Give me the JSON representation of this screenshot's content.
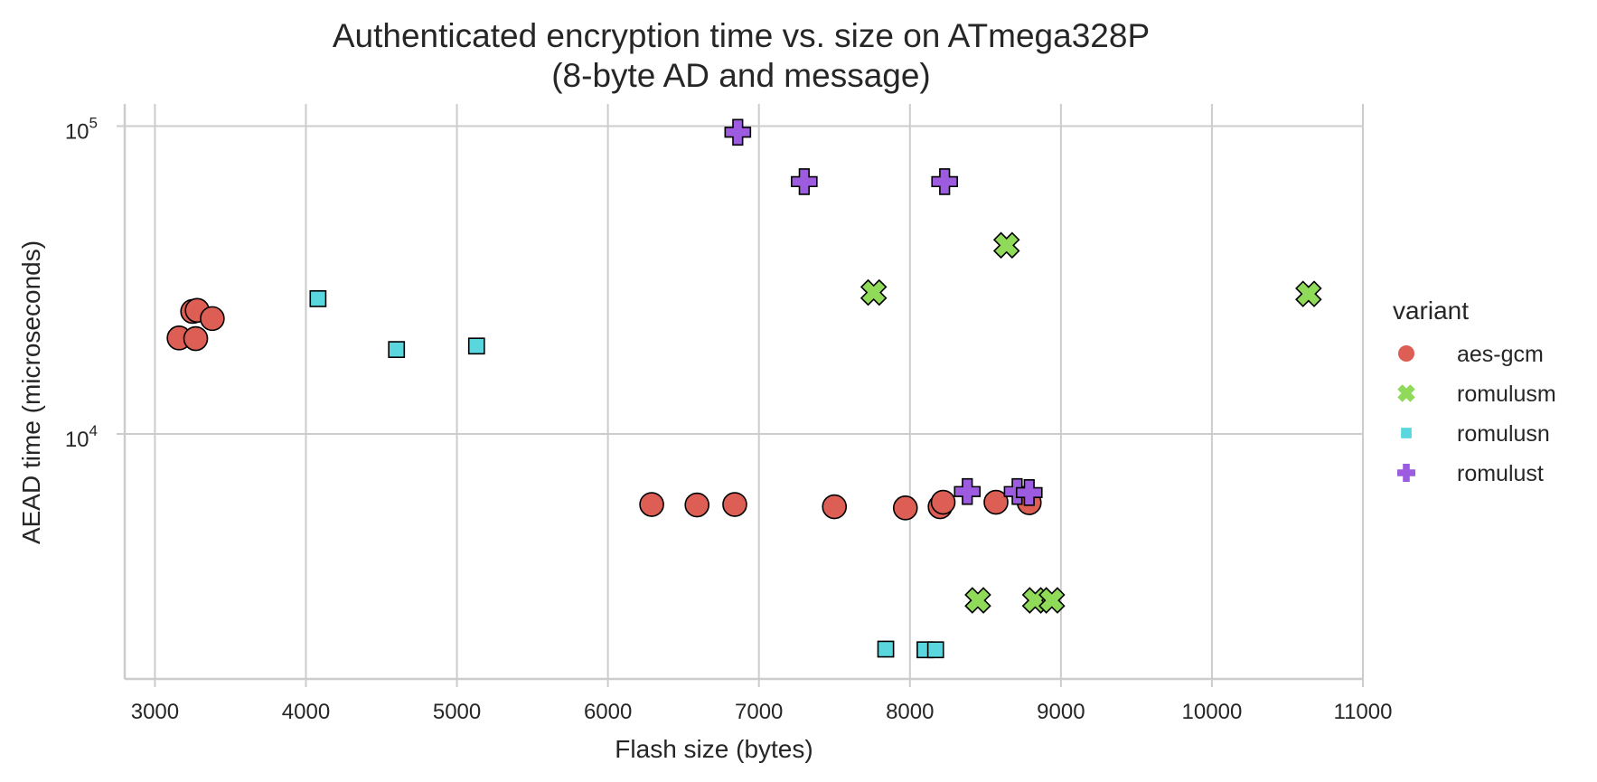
{
  "chart_data": {
    "type": "scatter",
    "title": "Authenticated encryption time vs. size on ATmega328P",
    "subtitle": "(8-byte AD and message)",
    "xlabel": "Flash size (bytes)",
    "ylabel": "AEAD time (microseconds)",
    "xlim": [
      2800,
      11000
    ],
    "ylim": [
      1600,
      118000
    ],
    "yscale": "log",
    "grid": true,
    "legend_title": "variant",
    "legend_position": "right",
    "x_ticks": [
      {
        "value": 3000,
        "label": "3000"
      },
      {
        "value": 4000,
        "label": "4000"
      },
      {
        "value": 5000,
        "label": "5000"
      },
      {
        "value": 6000,
        "label": "6000"
      },
      {
        "value": 7000,
        "label": "7000"
      },
      {
        "value": 8000,
        "label": "8000"
      },
      {
        "value": 9000,
        "label": "9000"
      },
      {
        "value": 10000,
        "label": "10000"
      },
      {
        "value": 11000,
        "label": "11000"
      }
    ],
    "y_ticks": [
      {
        "value": 10000,
        "base": "10",
        "exp": "4"
      },
      {
        "value": 100000,
        "base": "10",
        "exp": "5"
      }
    ],
    "series": [
      {
        "name": "aes-gcm",
        "marker": "circle",
        "color": "#dd5e54",
        "points": [
          {
            "x": 3160,
            "y": 20500
          },
          {
            "x": 3250,
            "y": 25000
          },
          {
            "x": 3280,
            "y": 25200
          },
          {
            "x": 3270,
            "y": 20400
          },
          {
            "x": 3380,
            "y": 23700
          },
          {
            "x": 6290,
            "y": 5900
          },
          {
            "x": 6590,
            "y": 5880
          },
          {
            "x": 6840,
            "y": 5900
          },
          {
            "x": 7500,
            "y": 5800
          },
          {
            "x": 7970,
            "y": 5750
          },
          {
            "x": 8200,
            "y": 5800
          },
          {
            "x": 8220,
            "y": 6000
          },
          {
            "x": 8570,
            "y": 6000
          },
          {
            "x": 8790,
            "y": 5980
          }
        ]
      },
      {
        "name": "romulusm",
        "marker": "x",
        "color": "#8fda58",
        "points": [
          {
            "x": 7760,
            "y": 28800
          },
          {
            "x": 8640,
            "y": 41000
          },
          {
            "x": 10640,
            "y": 28500
          },
          {
            "x": 8450,
            "y": 2880
          },
          {
            "x": 8830,
            "y": 2880
          },
          {
            "x": 8940,
            "y": 2880
          }
        ]
      },
      {
        "name": "romulusn",
        "marker": "square",
        "color": "#5ad6de",
        "points": [
          {
            "x": 4080,
            "y": 27500
          },
          {
            "x": 4600,
            "y": 18800
          },
          {
            "x": 5130,
            "y": 19300
          },
          {
            "x": 7840,
            "y": 2000
          },
          {
            "x": 8100,
            "y": 1990
          },
          {
            "x": 8170,
            "y": 1990
          }
        ]
      },
      {
        "name": "romulust",
        "marker": "plus",
        "color": "#9d5be0",
        "points": [
          {
            "x": 6860,
            "y": 95500
          },
          {
            "x": 7300,
            "y": 66000
          },
          {
            "x": 8230,
            "y": 66000
          },
          {
            "x": 8380,
            "y": 6500
          },
          {
            "x": 8710,
            "y": 6500
          },
          {
            "x": 8790,
            "y": 6450
          }
        ]
      }
    ]
  }
}
